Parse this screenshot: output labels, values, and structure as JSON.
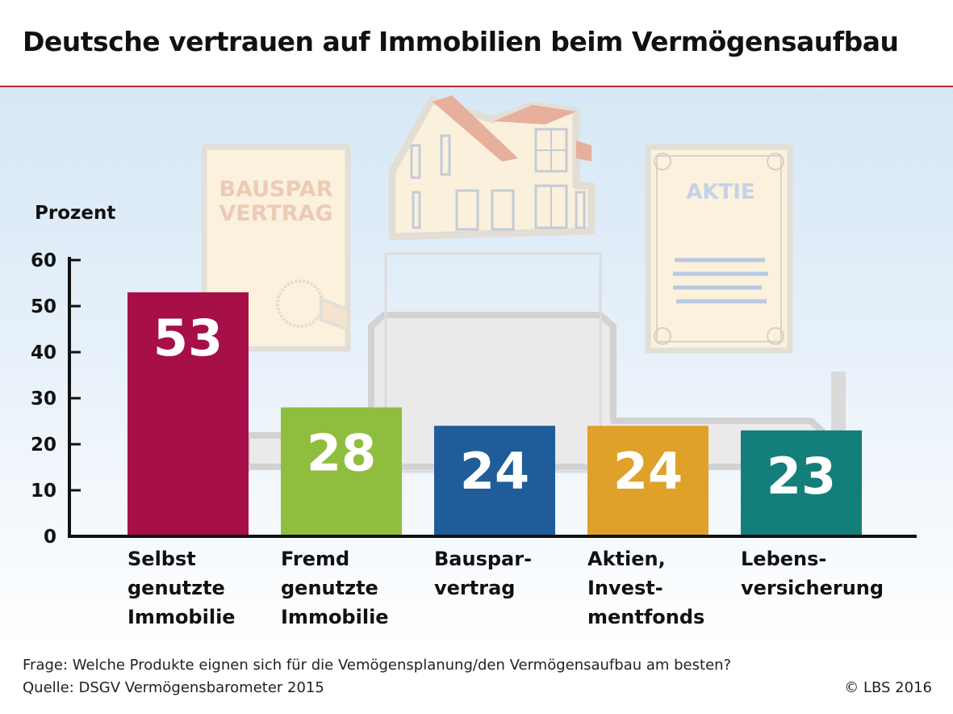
{
  "header": {
    "title": "Deutsche vertrauen auf Immobilien beim Vermögensaufbau"
  },
  "illustration": {
    "bauspar_label_line1": "BAUSPAR",
    "bauspar_label_line2": "VERTRAG",
    "aktie_label": "AKTIE"
  },
  "chart_data": {
    "type": "bar",
    "title": "Deutsche vertrauen auf Immobilien beim Vermögensaufbau",
    "ylabel": "Prozent",
    "xlabel": "",
    "ylim": [
      0,
      60
    ],
    "yticks": [
      0,
      10,
      20,
      30,
      40,
      50,
      60
    ],
    "grid": false,
    "categories": [
      [
        "Selbst",
        "genutzte",
        "Immobilie"
      ],
      [
        "Fremd",
        "genutzte",
        "Immobilie"
      ],
      [
        "Bauspar-",
        "vertrag"
      ],
      [
        "Aktien,",
        "Invest-",
        "mentfonds"
      ],
      [
        "Lebens-",
        "versicherung"
      ]
    ],
    "values": [
      53,
      28,
      24,
      24,
      23
    ],
    "data_labels": [
      "53",
      "28",
      "24",
      "24",
      "23"
    ],
    "colors": [
      "#a60f48",
      "#8fbe3f",
      "#1f5c99",
      "#dfa12a",
      "#147e7a"
    ]
  },
  "footer": {
    "question": "Frage: Welche Produkte eignen sich für die Vemögensplanung/den Vermögensaufbau am besten?",
    "source": "Quelle: DSGV Vermögensbarometer 2015",
    "copyright": "© LBS 2016"
  }
}
